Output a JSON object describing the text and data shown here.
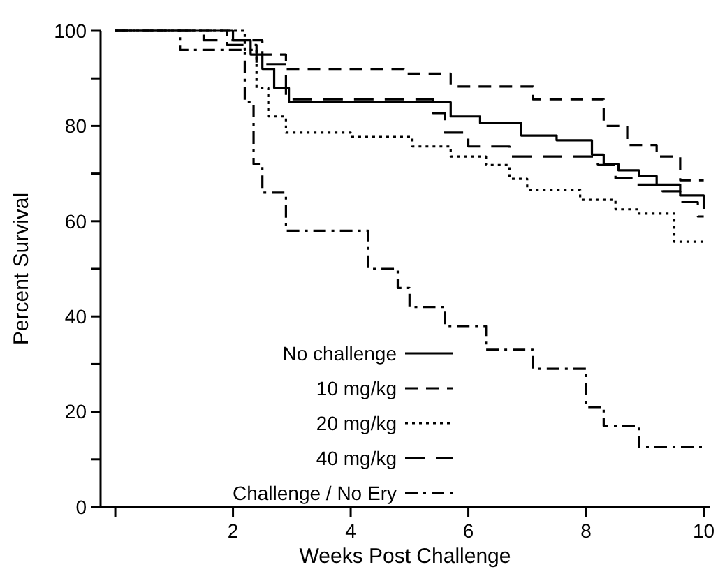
{
  "chart_data": {
    "type": "step",
    "xlabel": "Weeks Post Challenge",
    "ylabel": "Percent Survival",
    "xlim": [
      -0.25,
      10.1
    ],
    "ylim": [
      0,
      100
    ],
    "xticks": [
      {
        "value": 0,
        "label": null
      },
      2,
      4,
      6,
      8,
      10
    ],
    "yticks": [
      0,
      {
        "value": 10,
        "label": null
      },
      20,
      {
        "value": 30,
        "label": null
      },
      40,
      {
        "value": 50,
        "label": null
      },
      60,
      {
        "value": 70,
        "label": null
      },
      80,
      {
        "value": 90,
        "label": null
      },
      100
    ],
    "grid": false,
    "legend": "bottom",
    "series": [
      {
        "name": "No challenge",
        "color": "#000000",
        "line_style": "solid",
        "x": [
          0,
          2.0,
          2.3,
          2.5,
          2.7,
          2.95,
          5.7,
          6.2,
          6.9,
          7.5,
          8.1,
          8.3,
          8.55,
          8.9,
          9.2,
          9.6,
          10
        ],
        "values": [
          100,
          98,
          95,
          92,
          88,
          85,
          82,
          80.6,
          78,
          77,
          74,
          72,
          70.7,
          69.5,
          67.7,
          65.4,
          62.5
        ]
      },
      {
        "name": "10 mg/kg",
        "color": "#000000",
        "line_style": "dashed",
        "x": [
          0,
          1.9,
          2.5,
          2.9,
          4.9,
          5.7,
          7.1,
          8.3,
          8.7,
          9.2,
          9.6,
          10
        ],
        "values": [
          100,
          98,
          95,
          92,
          91,
          88.3,
          85.6,
          80,
          76,
          73.6,
          68.6,
          68.6
        ]
      },
      {
        "name": "20 mg/kg",
        "color": "#000000",
        "line_style": "dotted",
        "x": [
          0,
          2.2,
          2.4,
          2.6,
          2.9,
          4.0,
          5.05,
          5.7,
          6.3,
          6.7,
          7.0,
          7.9,
          8.5,
          8.9,
          9.5,
          10
        ],
        "values": [
          100,
          96,
          88,
          82,
          78.6,
          77.7,
          75.7,
          73.6,
          71.8,
          68.9,
          66.6,
          64.5,
          62.5,
          61.6,
          55.7,
          55.7
        ]
      },
      {
        "name": "40 mg/kg",
        "color": "#000000",
        "line_style": "longdash",
        "x": [
          0,
          1.5,
          1.9,
          2.4,
          2.9,
          5.4,
          5.6,
          6.0,
          6.7,
          8.2,
          8.5,
          8.8,
          9.3,
          9.6,
          9.9,
          10
        ],
        "values": [
          100,
          98,
          97,
          93,
          85.6,
          82.7,
          78.6,
          75.7,
          73.6,
          71.8,
          69,
          67.7,
          66.3,
          64,
          61,
          61
        ]
      },
      {
        "name": "Challenge / No Ery",
        "color": "#000000",
        "line_style": "dashdot",
        "x": [
          0,
          1.1,
          2.2,
          2.35,
          2.5,
          2.9,
          4.0,
          4.3,
          4.8,
          5.0,
          5.6,
          6.3,
          7.1,
          8.0,
          8.3,
          8.9,
          10
        ],
        "values": [
          100,
          96,
          85,
          72,
          66,
          58,
          58,
          50,
          46,
          42,
          38,
          33,
          29,
          21,
          17,
          12.6,
          12.6
        ]
      }
    ]
  }
}
